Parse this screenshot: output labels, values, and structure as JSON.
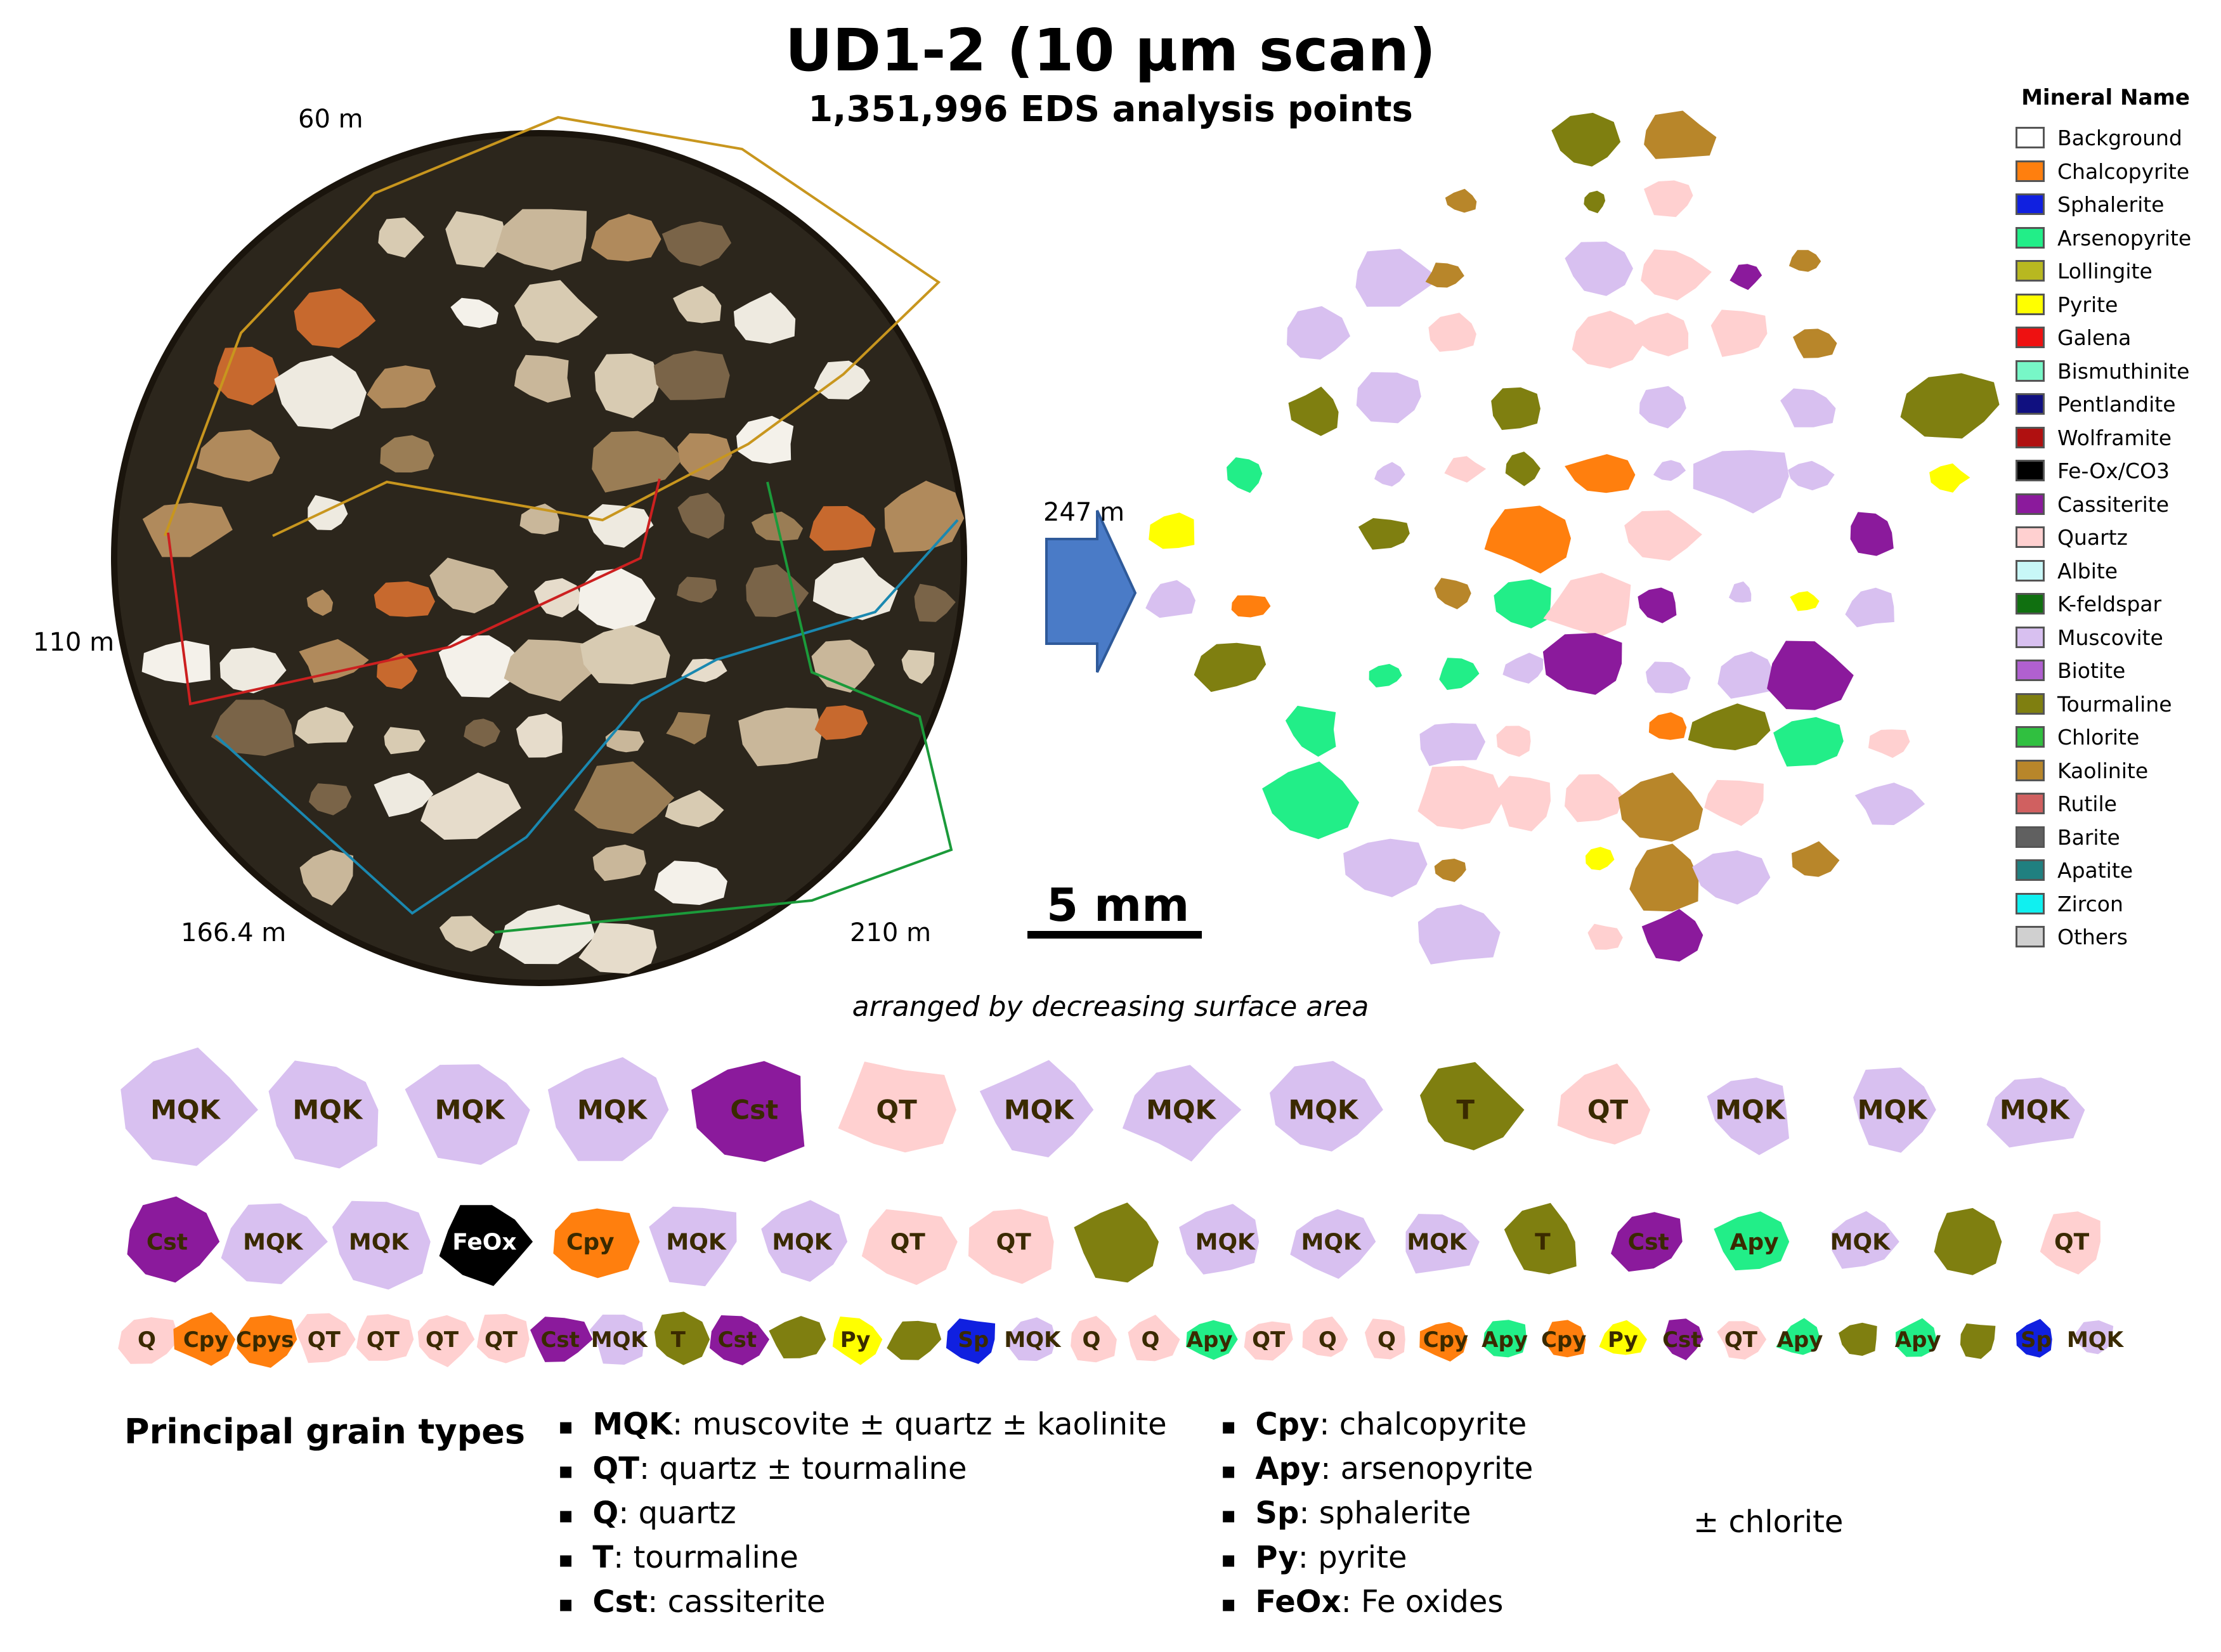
{
  "title": "UD1-2 (10 µm scan)",
  "subtitle": "1,351,996 EDS analysis points",
  "depth_labels": [
    "60 m",
    "110 m",
    "166.4  m",
    "210 m",
    "247 m"
  ],
  "scale_bar": "5 mm",
  "arranged_caption": "arranged by decreasing surface area",
  "legend": {
    "title": "Mineral Name",
    "items": [
      {
        "label": "Background",
        "color": "#ffffff"
      },
      {
        "label": "Chalcopyrite",
        "color": "#ff7f0e"
      },
      {
        "label": "Sphalerite",
        "color": "#1020e0"
      },
      {
        "label": "Arsenopyrite",
        "color": "#22ee88"
      },
      {
        "label": "Lollingite",
        "color": "#b8b820"
      },
      {
        "label": "Pyrite",
        "color": "#ffff00"
      },
      {
        "label": "Galena",
        "color": "#ee1111"
      },
      {
        "label": "Bismuthinite",
        "color": "#77f7c7"
      },
      {
        "label": "Pentlandite",
        "color": "#101080"
      },
      {
        "label": "Wolframite",
        "color": "#b01010"
      },
      {
        "label": "Fe-Ox/CO3",
        "color": "#000000"
      },
      {
        "label": "Cassiterite",
        "color": "#8b1a9c"
      },
      {
        "label": "Quartz",
        "color": "#ffd0d0"
      },
      {
        "label": "Albite",
        "color": "#c8f7f7"
      },
      {
        "label": "K-feldspar",
        "color": "#107010"
      },
      {
        "label": "Muscovite",
        "color": "#d8c0f0"
      },
      {
        "label": "Biotite",
        "color": "#b060d0"
      },
      {
        "label": "Tourmaline",
        "color": "#7f7f10"
      },
      {
        "label": "Chlorite",
        "color": "#30c040"
      },
      {
        "label": "Kaolinite",
        "color": "#b8862a"
      },
      {
        "label": "Rutile",
        "color": "#d06060"
      },
      {
        "label": "Barite",
        "color": "#606060"
      },
      {
        "label": "Apatite",
        "color": "#208080"
      },
      {
        "label": "Zircon",
        "color": "#10f0f0"
      },
      {
        "label": "Others",
        "color": "#d0d0d0"
      }
    ]
  },
  "grain_rows": [
    [
      "MQK",
      "MQK",
      "MQK",
      "MQK",
      "Cst",
      "QT",
      "MQK",
      "MQK",
      "MQK",
      "T",
      "QT",
      "MQK",
      "MQK",
      "MQK"
    ],
    [
      "Cst",
      "MQK",
      "MQK",
      "FeOx",
      "Cpy",
      "MQK",
      "MQK",
      "QT",
      "QT",
      "",
      "MQK",
      "MQK",
      "MQK",
      "T",
      "Cst",
      "Apy",
      "MQK",
      "",
      "QT"
    ],
    [
      "Q",
      "Cpy",
      "Cpys",
      "QT",
      "QT",
      "QT",
      "QT",
      "Cst",
      "MQK",
      "T",
      "Cst",
      "",
      "Py",
      "",
      "Sp",
      "MQK",
      "Q",
      "Q",
      "Apy",
      "QT",
      "Q",
      "Q",
      "Cpy",
      "Apy",
      "Cpy",
      "Py",
      "Cst",
      "QT",
      "Apy",
      "",
      "Apy",
      "",
      "Sp",
      "MQK"
    ]
  ],
  "principal_title": "Principal grain types",
  "key_left": [
    {
      "abbr": "MQK",
      "desc": ": muscovite ± quartz ± kaolinite"
    },
    {
      "abbr": "QT",
      "desc": ": quartz ± tourmaline"
    },
    {
      "abbr": "Q",
      "desc": ": quartz"
    },
    {
      "abbr": "T",
      "desc": ": tourmaline"
    },
    {
      "abbr": "Cst",
      "desc": ": cassiterite"
    }
  ],
  "key_right": [
    {
      "abbr": "Cpy",
      "desc": ": chalcopyrite"
    },
    {
      "abbr": "Apy",
      "desc": ": arsenopyrite"
    },
    {
      "abbr": "Sp",
      "desc": ": sphalerite"
    },
    {
      "abbr": "Py",
      "desc": ": pyrite"
    },
    {
      "abbr": "FeOx",
      "desc": ": Fe oxides"
    }
  ],
  "chlorite_note": "± chlorite"
}
